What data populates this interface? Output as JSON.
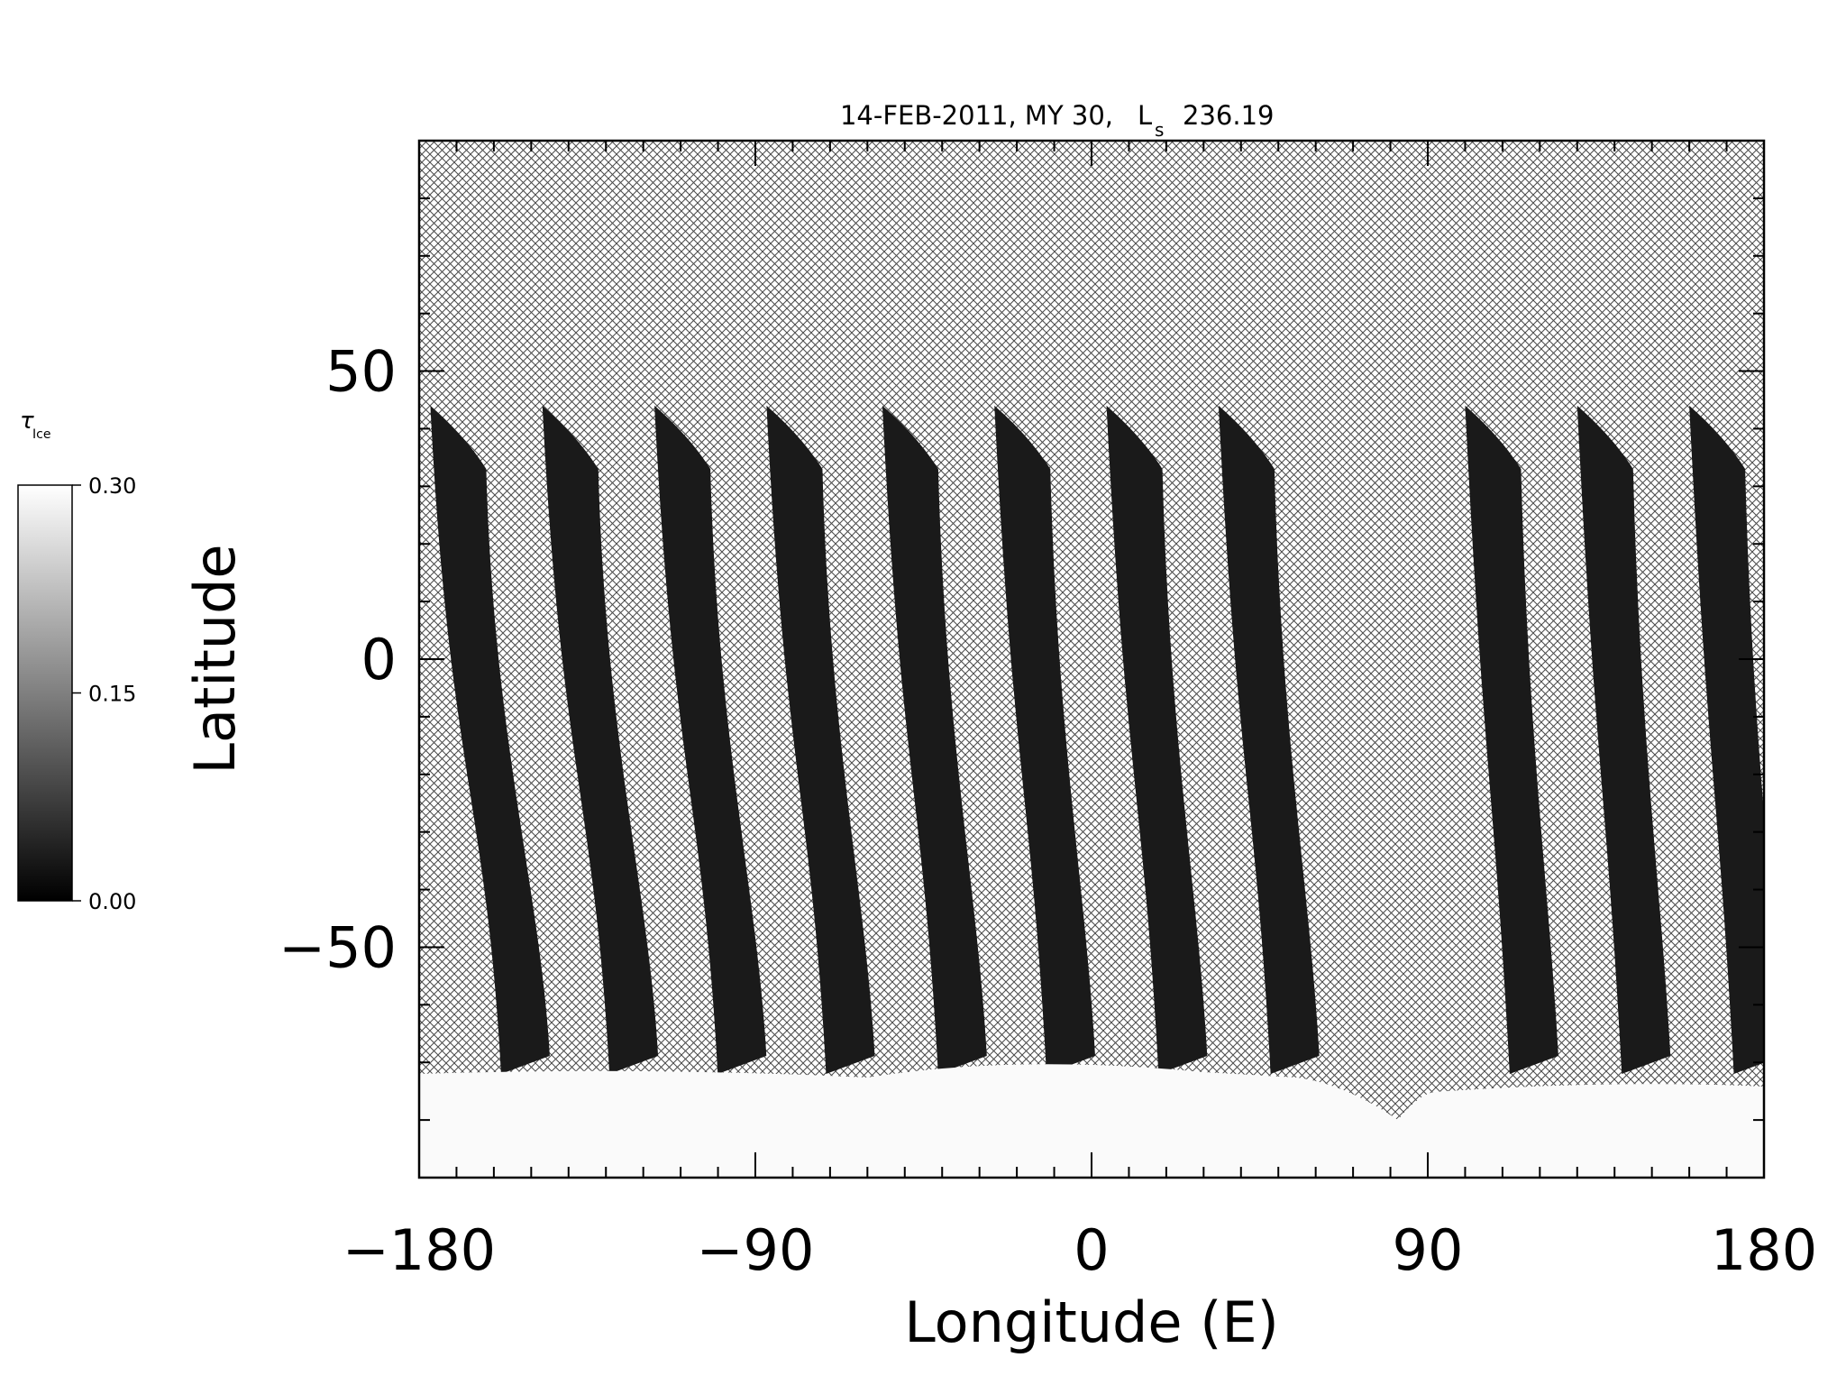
{
  "chart_data": {
    "type": "heatmap",
    "title": "14-FEB-2011, MY 30,",
    "title_ls_symbol": "L",
    "title_ls_subscript": "s",
    "title_ls_value": "236.19",
    "xlabel": "Longitude (E)",
    "ylabel": "Latitude",
    "xlim": [
      -180,
      180
    ],
    "ylim": [
      -90,
      90
    ],
    "x_ticks": [
      -180,
      -90,
      0,
      90,
      180
    ],
    "x_tick_labels": [
      "−180",
      "−90",
      "0",
      "90",
      "180"
    ],
    "y_ticks": [
      -50,
      0,
      50
    ],
    "y_tick_labels": [
      "−50",
      "0",
      "50"
    ],
    "x_minor_step": 10,
    "y_minor_step": 10,
    "no_data_pattern": "crosshatch",
    "grid": false,
    "colorbar": {
      "title": "τ",
      "title_subscript": "Ice",
      "min": 0.0,
      "max": 0.3,
      "ticks": [
        0.0,
        0.15,
        0.3
      ],
      "tick_labels": [
        "0.00",
        "0.15",
        "0.30"
      ],
      "colormap": "grayscale",
      "low_color": "#000000",
      "high_color": "#ffffff",
      "placement": "left"
    },
    "swaths": [
      {
        "lon_top": -177,
        "lon_bottom": -160
      },
      {
        "lon_top": -147,
        "lon_bottom": -131
      },
      {
        "lon_top": -117,
        "lon_bottom": -102
      },
      {
        "lon_top": -87,
        "lon_bottom": -73
      },
      {
        "lon_top": -56,
        "lon_bottom": -43
      },
      {
        "lon_top": -26,
        "lon_bottom": -14
      },
      {
        "lon_top": 4,
        "lon_bottom": 16
      },
      {
        "lon_top": 34,
        "lon_bottom": 46
      },
      {
        "lon_top": 100,
        "lon_bottom": 110
      },
      {
        "lon_top": 130,
        "lon_bottom": 140
      },
      {
        "lon_top": 160,
        "lon_bottom": 170
      }
    ],
    "swath_lat_top": 44,
    "swath_lat_bottom": -72,
    "swath_tau": 0.01,
    "south_cap": {
      "lat_edge": -72,
      "lat_min": -90,
      "tau": 0.3
    },
    "gap": {
      "lon_center": 82,
      "lat_tip": -80
    }
  }
}
